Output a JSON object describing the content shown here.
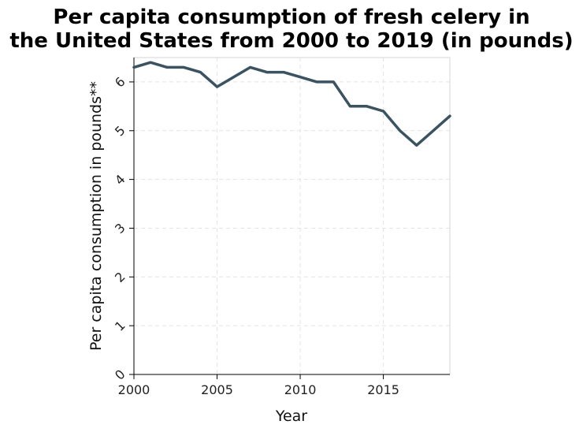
{
  "chart_data": {
    "type": "line",
    "title_lines": [
      "Per capita consumption of fresh celery in",
      "the United States from 2000 to 2019 (in pounds)"
    ],
    "xlabel": "Year",
    "ylabel": "Per capita consumption in pounds**",
    "xlim": [
      2000,
      2019
    ],
    "ylim": [
      0,
      6.5
    ],
    "x_ticks": [
      2000,
      2005,
      2010,
      2015
    ],
    "y_ticks": [
      0,
      1,
      2,
      3,
      4,
      5,
      6
    ],
    "grid": true,
    "series": [
      {
        "name": "Per capita consumption",
        "color": "#3b5361",
        "x": [
          2000,
          2001,
          2002,
          2003,
          2004,
          2005,
          2006,
          2007,
          2008,
          2009,
          2010,
          2011,
          2012,
          2013,
          2014,
          2015,
          2016,
          2017,
          2018,
          2019
        ],
        "values": [
          6.3,
          6.4,
          6.3,
          6.3,
          6.2,
          5.9,
          6.1,
          6.3,
          6.2,
          6.2,
          6.1,
          6.0,
          6.0,
          5.5,
          5.5,
          5.4,
          5.0,
          4.7,
          5.0,
          5.3
        ]
      }
    ]
  }
}
